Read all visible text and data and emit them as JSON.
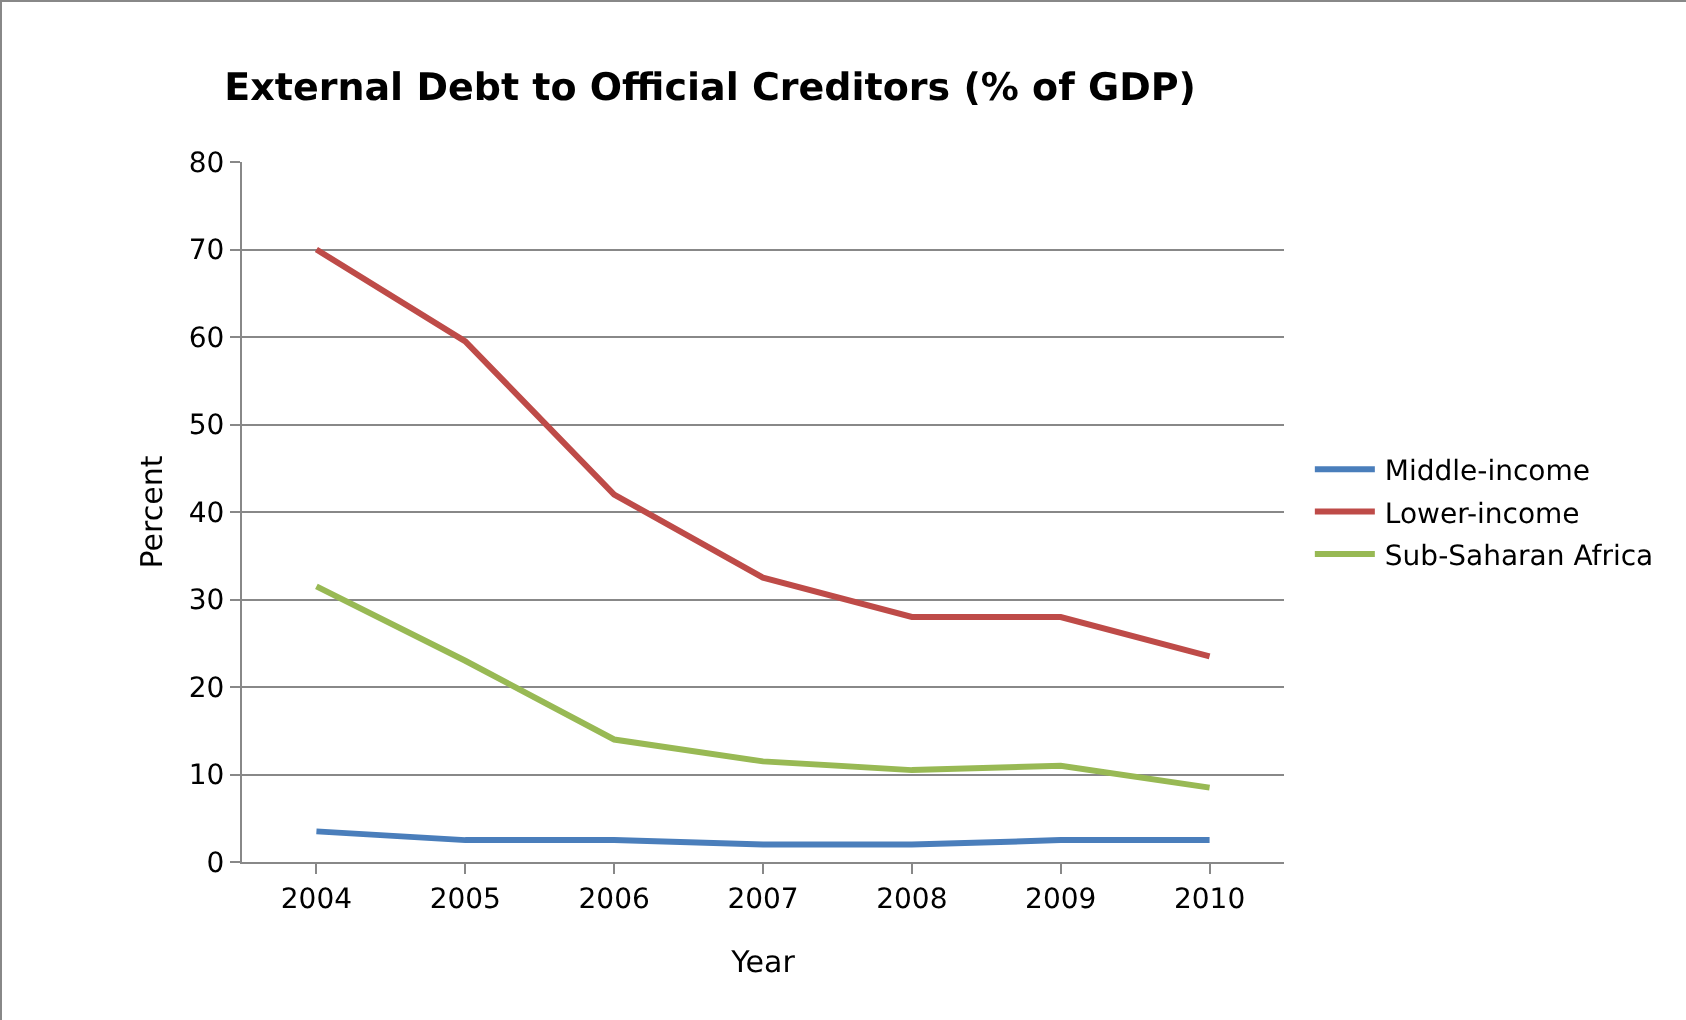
{
  "chart_data": {
    "type": "line",
    "title": "External Debt to Official Creditors (% of GDP)",
    "xlabel": "Year",
    "ylabel": "Percent",
    "categories": [
      "2004",
      "2005",
      "2006",
      "2007",
      "2008",
      "2009",
      "2010"
    ],
    "series": [
      {
        "name": "Middle-income",
        "color": "#4a7ebb",
        "values": [
          3.5,
          2.5,
          2.5,
          2,
          2,
          2.5,
          2.5
        ]
      },
      {
        "name": "Lower-income",
        "color": "#be4b48",
        "values": [
          70,
          59.5,
          42,
          32.5,
          28,
          28,
          23.5
        ]
      },
      {
        "name": "Sub-Saharan Africa",
        "color": "#98b954",
        "values": [
          31.5,
          23,
          14,
          11.5,
          10.5,
          11,
          8.5
        ]
      }
    ],
    "ylim": [
      0,
      80
    ],
    "yticks": [
      0,
      10,
      20,
      30,
      40,
      50,
      60,
      70,
      80
    ],
    "grid": "y",
    "legend": "right",
    "marker": "none",
    "line_style": "solid"
  }
}
